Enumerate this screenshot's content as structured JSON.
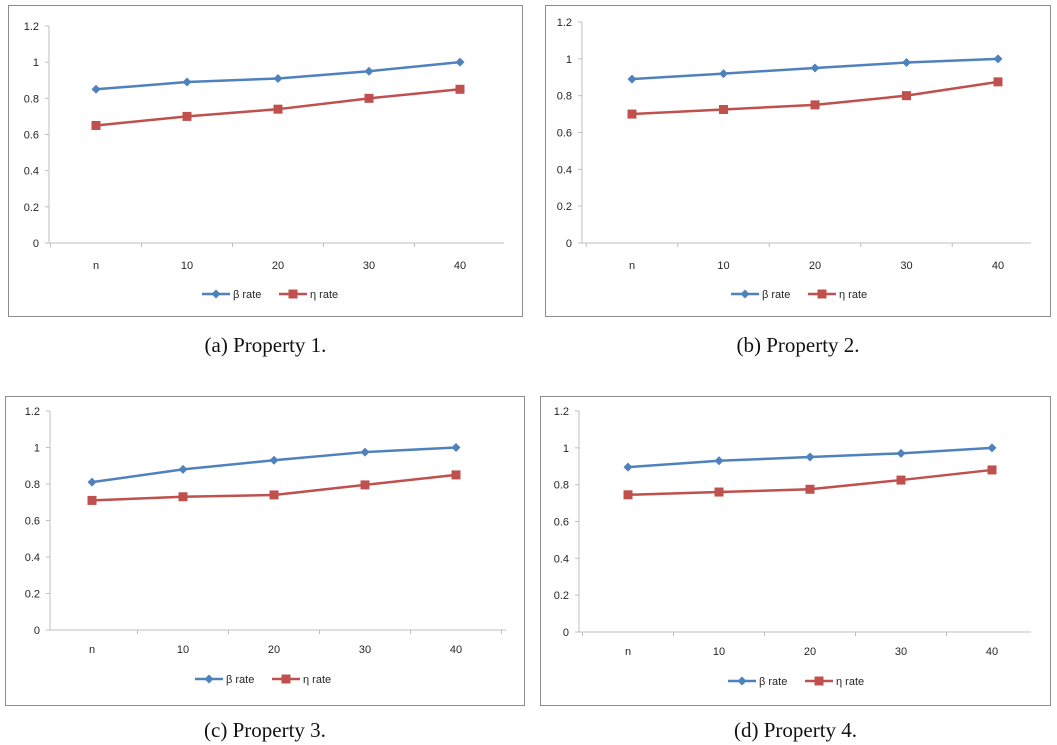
{
  "legend_position": "bottom",
  "grid": false,
  "colors": {
    "beta": "#4f81bd",
    "eta": "#c0504d",
    "axis": "#bfbfbf",
    "frame": "#8c8c8c"
  },
  "marker_shapes": {
    "beta": "diamond",
    "eta": "square"
  },
  "chart_data": [
    {
      "type": "line",
      "caption": "(a) Property 1.",
      "categories": [
        "n",
        "10",
        "20",
        "30",
        "40"
      ],
      "yticks": [
        "0",
        "0.2",
        "0.4",
        "0.6",
        "0.8",
        "1",
        "1.2"
      ],
      "ylim": [
        0,
        1.2
      ],
      "series": [
        {
          "name": "β rate",
          "values": [
            0.85,
            0.89,
            0.91,
            0.95,
            1.0
          ]
        },
        {
          "name": "η rate",
          "values": [
            0.65,
            0.7,
            0.74,
            0.8,
            0.85
          ]
        }
      ]
    },
    {
      "type": "line",
      "caption": "(b) Property 2.",
      "categories": [
        "n",
        "10",
        "20",
        "30",
        "40"
      ],
      "yticks": [
        "0",
        "0.2",
        "0.4",
        "0.6",
        "0.8",
        "1",
        "1.2"
      ],
      "ylim": [
        0,
        1.2
      ],
      "series": [
        {
          "name": "β rate",
          "values": [
            0.89,
            0.92,
            0.95,
            0.98,
            1.0
          ]
        },
        {
          "name": "η rate",
          "values": [
            0.7,
            0.725,
            0.75,
            0.8,
            0.875
          ]
        }
      ]
    },
    {
      "type": "line",
      "caption": "(c) Property 3.",
      "categories": [
        "n",
        "10",
        "20",
        "30",
        "40"
      ],
      "yticks": [
        "0",
        "0.2",
        "0.4",
        "0.6",
        "0.8",
        "1",
        "1.2"
      ],
      "ylim": [
        0,
        1.2
      ],
      "series": [
        {
          "name": "β rate",
          "values": [
            0.81,
            0.88,
            0.93,
            0.975,
            1.0
          ]
        },
        {
          "name": "η rate",
          "values": [
            0.71,
            0.73,
            0.74,
            0.795,
            0.85
          ]
        }
      ]
    },
    {
      "type": "line",
      "caption": "(d) Property 4.",
      "categories": [
        "n",
        "10",
        "20",
        "30",
        "40"
      ],
      "yticks": [
        "0",
        "0.2",
        "0.4",
        "0.6",
        "0.8",
        "1",
        "1.2"
      ],
      "ylim": [
        0,
        1.2
      ],
      "series": [
        {
          "name": "β rate",
          "values": [
            0.895,
            0.93,
            0.95,
            0.97,
            1.0
          ]
        },
        {
          "name": "η rate",
          "values": [
            0.745,
            0.76,
            0.775,
            0.825,
            0.88
          ]
        }
      ]
    }
  ]
}
